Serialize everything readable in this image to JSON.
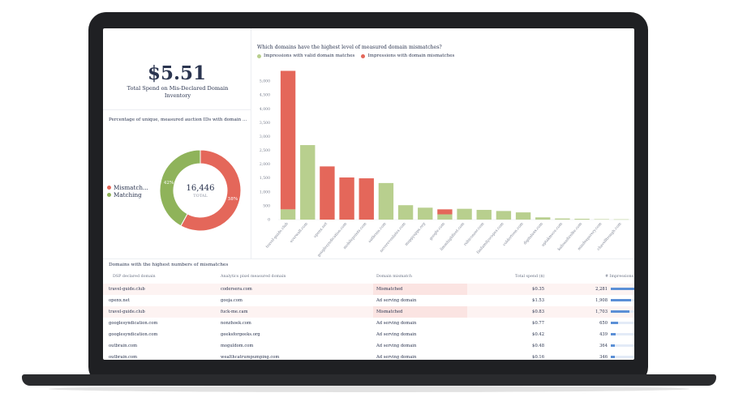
{
  "kpi": {
    "value": "$5.51",
    "label": "Total Spend on Mis-Declared Domain Inventory"
  },
  "donut": {
    "title": "Percentage of unique, measured auction IDs with domain ...",
    "center_value": "16,446",
    "center_label": "TOTAL",
    "legend": [
      {
        "label": "Mismatch...",
        "color": "#e4675a"
      },
      {
        "label": "Matching",
        "color": "#8fb35a"
      }
    ],
    "slices": [
      {
        "label": "58%",
        "value": 58,
        "color": "#e4675a"
      },
      {
        "label": "42%",
        "value": 42,
        "color": "#8fb35a"
      }
    ]
  },
  "chart_data": {
    "type": "bar",
    "title": "Which domains have the highest level of measured domain mismatches?",
    "legend_placement": "top-left",
    "categories": [
      "travel-guide.club",
      "everwall.com",
      "openx.net",
      "googlesyndication.com",
      "mobilepoints.com",
      "outbrain.com",
      "neverevenlates.com",
      "mappyapps.org",
      "google.com",
      "limmhighfleet.com",
      "rubiconser.com",
      "fanfamilyscopes.com",
      "coldertoon.com",
      "digitalaxx.com",
      "uptakmove.com",
      "kaliosadirelke.com",
      "mindexperery.com",
      "chavelltrough.com"
    ],
    "series": [
      {
        "name": "Impressions with valid domain matches",
        "color": "#b8cf8e",
        "values": [
          370,
          2690,
          0,
          0,
          0,
          1320,
          520,
          430,
          190,
          390,
          350,
          310,
          260,
          80,
          40,
          30,
          15,
          10
        ]
      },
      {
        "name": "Impressions with domain mismatches",
        "color": "#e4675a",
        "values": [
          5000,
          0,
          1920,
          1520,
          1490,
          0,
          0,
          0,
          180,
          0,
          0,
          0,
          0,
          0,
          0,
          0,
          0,
          0
        ]
      }
    ],
    "yticks": [
      "0",
      "500",
      "1,000",
      "1,500",
      "2,000",
      "2,500",
      "3,000",
      "3,500",
      "4,000",
      "4,500",
      "5,000"
    ],
    "ylim": [
      0,
      5500
    ],
    "grid": false
  },
  "table": {
    "title": "Domains with the highest numbers of mismatches",
    "columns": [
      "DSP declared domain",
      "Analytics pixel measured domain",
      "Domain mismatch",
      "Total spend ($)",
      "# Impressions"
    ],
    "rows": [
      {
        "dsp": "travel-guide.club",
        "measured": "codersera.com",
        "mismatch": "Mismatched",
        "spend": "$0.35",
        "impressions": "2,281",
        "pct": 1.0
      },
      {
        "dsp": "openx.net",
        "measured": "gooja.com",
        "mismatch": "Ad serving domain",
        "spend": "$1.53",
        "impressions": "1,908",
        "pct": 0.84
      },
      {
        "dsp": "travel-guide.club",
        "measured": "fuck-me.cam",
        "mismatch": "Mismatched",
        "spend": "$0.83",
        "impressions": "1,703",
        "pct": 0.75
      },
      {
        "dsp": "googlesyndication.com",
        "measured": "nonzhoek.com",
        "mismatch": "Ad serving domain",
        "spend": "$0.77",
        "impressions": "650",
        "pct": 0.29
      },
      {
        "dsp": "googlesyndication.com",
        "measured": "geeksforgeeks.org",
        "mismatch": "Ad serving domain",
        "spend": "$0.42",
        "impressions": "439",
        "pct": 0.19
      },
      {
        "dsp": "outbrain.com",
        "measured": "moguldom.com",
        "mismatch": "Ad serving domain",
        "spend": "$0.48",
        "impressions": "364",
        "pct": 0.16
      },
      {
        "dsp": "outbrain.com",
        "measured": "wealthcatrumpumping.com",
        "mismatch": "Ad serving domain",
        "spend": "$0.16",
        "impressions": "346",
        "pct": 0.15
      }
    ]
  }
}
